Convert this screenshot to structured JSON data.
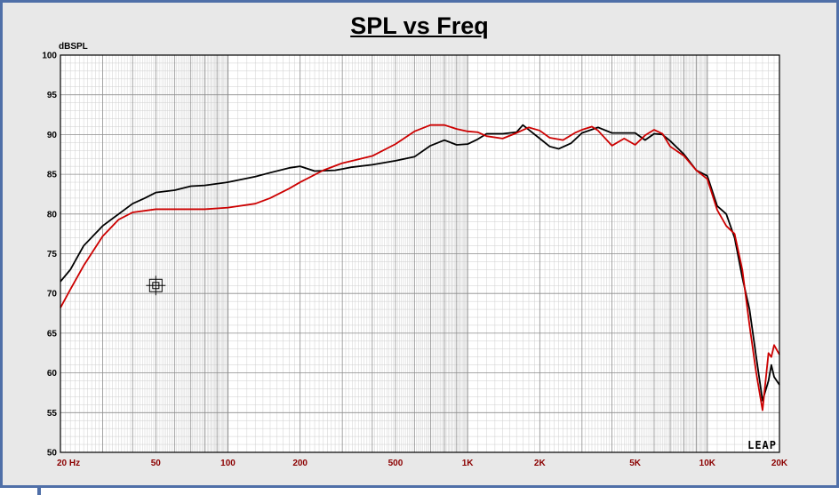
{
  "chart_data": {
    "type": "line",
    "title": "SPL vs Freq",
    "ylabel": "dBSPL",
    "xlabel": "",
    "x_scale": "log",
    "xlim": [
      20,
      20000
    ],
    "ylim": [
      50,
      100
    ],
    "grid": true,
    "y_ticks": [
      100,
      95,
      90,
      85,
      80,
      75,
      70,
      65,
      60,
      55,
      50
    ],
    "x_ticks": [
      {
        "value": 20,
        "label": "20  Hz"
      },
      {
        "value": 50,
        "label": "50"
      },
      {
        "value": 100,
        "label": "100"
      },
      {
        "value": 200,
        "label": "200"
      },
      {
        "value": 500,
        "label": "500"
      },
      {
        "value": 1000,
        "label": "1K"
      },
      {
        "value": 2000,
        "label": "2K"
      },
      {
        "value": 5000,
        "label": "5K"
      },
      {
        "value": 10000,
        "label": "10K"
      },
      {
        "value": 20000,
        "label": "20K"
      }
    ],
    "series": [
      {
        "color": "#000000",
        "points": [
          [
            20,
            71.5
          ],
          [
            22,
            73
          ],
          [
            25,
            76
          ],
          [
            30,
            78.5
          ],
          [
            35,
            80
          ],
          [
            40,
            81.3
          ],
          [
            45,
            82
          ],
          [
            50,
            82.7
          ],
          [
            60,
            83
          ],
          [
            70,
            83.5
          ],
          [
            80,
            83.6
          ],
          [
            100,
            84
          ],
          [
            130,
            84.7
          ],
          [
            150,
            85.2
          ],
          [
            180,
            85.8
          ],
          [
            200,
            86
          ],
          [
            230,
            85.4
          ],
          [
            280,
            85.5
          ],
          [
            330,
            85.9
          ],
          [
            400,
            86.2
          ],
          [
            500,
            86.7
          ],
          [
            600,
            87.2
          ],
          [
            700,
            88.6
          ],
          [
            800,
            89.3
          ],
          [
            900,
            88.7
          ],
          [
            1000,
            88.8
          ],
          [
            1100,
            89.4
          ],
          [
            1200,
            90.1
          ],
          [
            1400,
            90.1
          ],
          [
            1600,
            90.3
          ],
          [
            1700,
            91.2
          ],
          [
            1800,
            90.6
          ],
          [
            2000,
            89.5
          ],
          [
            2200,
            88.5
          ],
          [
            2400,
            88.2
          ],
          [
            2700,
            88.9
          ],
          [
            3000,
            90.2
          ],
          [
            3500,
            90.9
          ],
          [
            4000,
            90.2
          ],
          [
            5000,
            90.2
          ],
          [
            5500,
            89.3
          ],
          [
            6000,
            90.1
          ],
          [
            6500,
            90
          ],
          [
            7000,
            89.2
          ],
          [
            8000,
            87.5
          ],
          [
            9000,
            85.5
          ],
          [
            10000,
            84.8
          ],
          [
            11000,
            81
          ],
          [
            12000,
            80
          ],
          [
            13000,
            77
          ],
          [
            14000,
            72
          ],
          [
            15000,
            68
          ],
          [
            16000,
            62
          ],
          [
            17000,
            56.5
          ],
          [
            18000,
            59
          ],
          [
            18500,
            61
          ],
          [
            19000,
            59.5
          ],
          [
            20000,
            58.5
          ]
        ]
      },
      {
        "color": "#cc0000",
        "points": [
          [
            20,
            68.2
          ],
          [
            22,
            70.5
          ],
          [
            25,
            73.5
          ],
          [
            30,
            77.2
          ],
          [
            35,
            79.3
          ],
          [
            40,
            80.2
          ],
          [
            50,
            80.6
          ],
          [
            60,
            80.6
          ],
          [
            80,
            80.6
          ],
          [
            100,
            80.8
          ],
          [
            130,
            81.3
          ],
          [
            150,
            82
          ],
          [
            180,
            83.2
          ],
          [
            200,
            84
          ],
          [
            250,
            85.5
          ],
          [
            300,
            86.4
          ],
          [
            400,
            87.3
          ],
          [
            500,
            88.8
          ],
          [
            600,
            90.4
          ],
          [
            700,
            91.2
          ],
          [
            800,
            91.2
          ],
          [
            900,
            90.7
          ],
          [
            1000,
            90.4
          ],
          [
            1100,
            90.3
          ],
          [
            1200,
            89.8
          ],
          [
            1400,
            89.5
          ],
          [
            1600,
            90.2
          ],
          [
            1800,
            90.9
          ],
          [
            2000,
            90.5
          ],
          [
            2200,
            89.6
          ],
          [
            2500,
            89.3
          ],
          [
            2800,
            90.2
          ],
          [
            3000,
            90.6
          ],
          [
            3300,
            91
          ],
          [
            3500,
            90.5
          ],
          [
            4000,
            88.6
          ],
          [
            4500,
            89.5
          ],
          [
            5000,
            88.7
          ],
          [
            5500,
            89.9
          ],
          [
            6000,
            90.6
          ],
          [
            6500,
            90.1
          ],
          [
            7000,
            88.5
          ],
          [
            8000,
            87.3
          ],
          [
            9000,
            85.5
          ],
          [
            10000,
            84.4
          ],
          [
            11000,
            80.5
          ],
          [
            12000,
            78.5
          ],
          [
            13000,
            77.5
          ],
          [
            14000,
            73
          ],
          [
            15000,
            66
          ],
          [
            16000,
            60
          ],
          [
            17000,
            55.3
          ],
          [
            18000,
            62.5
          ],
          [
            18500,
            62
          ],
          [
            19000,
            63.5
          ],
          [
            20000,
            62.3
          ]
        ]
      }
    ],
    "annotations": [
      {
        "kind": "cursor-marker",
        "x": 50,
        "y": 71
      }
    ],
    "logo_text": "LEAP"
  }
}
